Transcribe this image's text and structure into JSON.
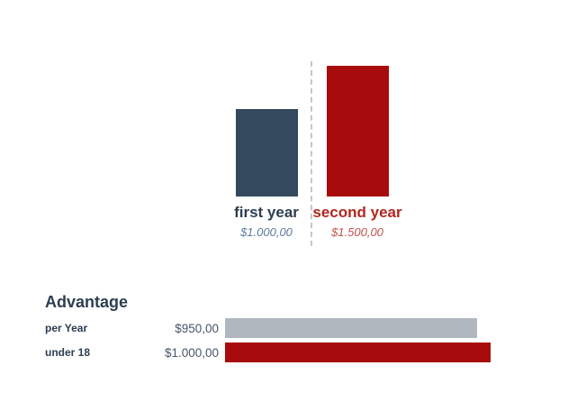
{
  "page": {
    "background": "#ffffff"
  },
  "chart_data": [
    {
      "type": "bar",
      "orientation": "vertical",
      "categories": [
        "first year",
        "second year"
      ],
      "values": [
        1000,
        1500
      ],
      "value_labels": [
        "$1.000,00",
        "$1.500,00"
      ],
      "colors": [
        "#34495e",
        "#a80b0b"
      ],
      "category_label_colors": [
        "#2c3e50",
        "#b1271f"
      ],
      "value_label_colors": [
        "#5d7c9e",
        "#c0534d"
      ],
      "axis_max": 1500,
      "grid": false,
      "legend": "none",
      "divider": "dashed-vertical-line-between-bars",
      "divider_color": "#c6c6c6"
    },
    {
      "type": "bar",
      "orientation": "horizontal",
      "title": "Advantage",
      "categories": [
        "per Year",
        "under 18"
      ],
      "values": [
        950,
        1000
      ],
      "value_labels": [
        "$950,00",
        "$1.000,00"
      ],
      "colors": [
        "#b1b7bf",
        "#a80b0b"
      ],
      "axis_max": 1000,
      "grid": false,
      "legend": "none"
    }
  ]
}
